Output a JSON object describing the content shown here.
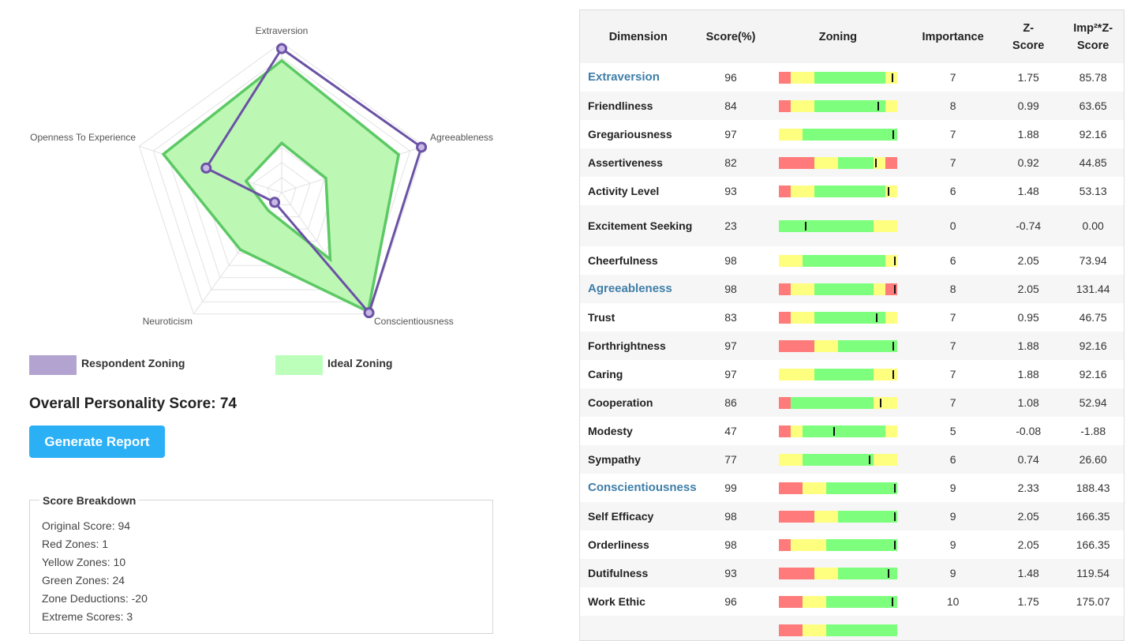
{
  "radar": {
    "axes": [
      "Extraversion",
      "Agreeableness",
      "Conscientiousness",
      "Neuroticism",
      "Openness To Experience"
    ],
    "max": 100,
    "respondent": [
      96,
      98,
      99,
      8,
      53
    ],
    "ideal_outer": [
      88,
      82,
      98,
      47,
      83
    ],
    "ideal_inner": [
      33,
      31,
      55,
      15,
      25
    ],
    "respondent_color": "#6b52a5",
    "ideal_color": "#5cc965",
    "ideal_fill": "#bdf7b4"
  },
  "legend": {
    "respondent": {
      "label": "Respondent Zoning",
      "color": "#b3a3d1"
    },
    "ideal": {
      "label": "Ideal Zoning",
      "color": "#bbffbb"
    }
  },
  "overall_label": "Overall Personality Score: 74",
  "generate_button": "Generate Report",
  "breakdown": {
    "title": "Score Breakdown",
    "lines": [
      "Original Score: 94",
      "Red Zones: 1",
      "Yellow Zones: 10",
      "Green Zones: 24",
      "Zone Deductions: -20",
      "Extreme Scores: 3"
    ]
  },
  "zone_colors": {
    "r": "#ff7b7b",
    "y": "#ffff7f",
    "g": "#7dff7d"
  },
  "table": {
    "headers": [
      "Dimension",
      "Score(%)",
      "Zoning",
      "Importance",
      "Z-Score",
      "Imp²*Z-Score"
    ],
    "rows": [
      {
        "dim": "Extraversion",
        "main": true,
        "score": "96",
        "imp": "7",
        "z": "1.75",
        "iz": "85.78",
        "zones": [
          [
            "r",
            0,
            10
          ],
          [
            "y",
            10,
            30
          ],
          [
            "g",
            30,
            90
          ],
          [
            "y",
            90,
            100
          ]
        ],
        "marker": 96
      },
      {
        "dim": "Friendliness",
        "score": "84",
        "imp": "8",
        "z": "0.99",
        "iz": "63.65",
        "zones": [
          [
            "r",
            0,
            10
          ],
          [
            "y",
            10,
            30
          ],
          [
            "g",
            30,
            90
          ],
          [
            "y",
            90,
            100
          ]
        ],
        "marker": 84
      },
      {
        "dim": "Gregariousness",
        "score": "97",
        "imp": "7",
        "z": "1.88",
        "iz": "92.16",
        "zones": [
          [
            "y",
            0,
            20
          ],
          [
            "g",
            20,
            100
          ]
        ],
        "marker": 97
      },
      {
        "dim": "Assertiveness",
        "score": "82",
        "imp": "7",
        "z": "0.92",
        "iz": "44.85",
        "zones": [
          [
            "r",
            0,
            30
          ],
          [
            "y",
            30,
            50
          ],
          [
            "g",
            50,
            80
          ],
          [
            "y",
            80,
            90
          ],
          [
            "r",
            90,
            100
          ]
        ],
        "marker": 82
      },
      {
        "dim": "Activity Level",
        "score": "93",
        "imp": "6",
        "z": "1.48",
        "iz": "53.13",
        "zones": [
          [
            "r",
            0,
            10
          ],
          [
            "y",
            10,
            30
          ],
          [
            "g",
            30,
            90
          ],
          [
            "y",
            90,
            100
          ]
        ],
        "marker": 93
      },
      {
        "dim": "Excitement Seeking",
        "score": "23",
        "imp": "0",
        "z": "-0.74",
        "iz": "0.00",
        "tall": true,
        "zones": [
          [
            "g",
            0,
            80
          ],
          [
            "y",
            80,
            100
          ]
        ],
        "marker": 23
      },
      {
        "dim": "Cheerfulness",
        "score": "98",
        "imp": "6",
        "z": "2.05",
        "iz": "73.94",
        "zones": [
          [
            "y",
            0,
            20
          ],
          [
            "g",
            20,
            90
          ],
          [
            "y",
            90,
            100
          ]
        ],
        "marker": 98
      },
      {
        "dim": "Agreeableness",
        "main": true,
        "score": "98",
        "imp": "8",
        "z": "2.05",
        "iz": "131.44",
        "zones": [
          [
            "r",
            0,
            10
          ],
          [
            "y",
            10,
            30
          ],
          [
            "g",
            30,
            80
          ],
          [
            "y",
            80,
            90
          ],
          [
            "r",
            90,
            100
          ]
        ],
        "marker": 98
      },
      {
        "dim": "Trust",
        "score": "83",
        "imp": "7",
        "z": "0.95",
        "iz": "46.75",
        "zones": [
          [
            "r",
            0,
            10
          ],
          [
            "y",
            10,
            30
          ],
          [
            "g",
            30,
            90
          ],
          [
            "y",
            90,
            100
          ]
        ],
        "marker": 83
      },
      {
        "dim": "Forthrightness",
        "score": "97",
        "imp": "7",
        "z": "1.88",
        "iz": "92.16",
        "zones": [
          [
            "r",
            0,
            30
          ],
          [
            "y",
            30,
            50
          ],
          [
            "g",
            50,
            100
          ]
        ],
        "marker": 97
      },
      {
        "dim": "Caring",
        "score": "97",
        "imp": "7",
        "z": "1.88",
        "iz": "92.16",
        "zones": [
          [
            "y",
            0,
            30
          ],
          [
            "g",
            30,
            80
          ],
          [
            "y",
            80,
            100
          ]
        ],
        "marker": 97
      },
      {
        "dim": "Cooperation",
        "score": "86",
        "imp": "7",
        "z": "1.08",
        "iz": "52.94",
        "zones": [
          [
            "r",
            0,
            10
          ],
          [
            "g",
            10,
            80
          ],
          [
            "y",
            80,
            100
          ]
        ],
        "marker": 86
      },
      {
        "dim": "Modesty",
        "score": "47",
        "imp": "5",
        "z": "-0.08",
        "iz": "-1.88",
        "zones": [
          [
            "r",
            0,
            10
          ],
          [
            "y",
            10,
            20
          ],
          [
            "g",
            20,
            90
          ],
          [
            "y",
            90,
            100
          ]
        ],
        "marker": 47
      },
      {
        "dim": "Sympathy",
        "score": "77",
        "imp": "6",
        "z": "0.74",
        "iz": "26.60",
        "zones": [
          [
            "y",
            0,
            20
          ],
          [
            "g",
            20,
            80
          ],
          [
            "y",
            80,
            100
          ]
        ],
        "marker": 77
      },
      {
        "dim": "Conscientiousness",
        "main": true,
        "score": "99",
        "imp": "9",
        "z": "2.33",
        "iz": "188.43",
        "zones": [
          [
            "r",
            0,
            20
          ],
          [
            "y",
            20,
            40
          ],
          [
            "g",
            40,
            100
          ]
        ],
        "marker": 99
      },
      {
        "dim": "Self Efficacy",
        "score": "98",
        "imp": "9",
        "z": "2.05",
        "iz": "166.35",
        "zones": [
          [
            "r",
            0,
            30
          ],
          [
            "y",
            30,
            50
          ],
          [
            "g",
            50,
            100
          ]
        ],
        "marker": 98
      },
      {
        "dim": "Orderliness",
        "score": "98",
        "imp": "9",
        "z": "2.05",
        "iz": "166.35",
        "zones": [
          [
            "r",
            0,
            10
          ],
          [
            "y",
            10,
            40
          ],
          [
            "g",
            40,
            100
          ]
        ],
        "marker": 98
      },
      {
        "dim": "Dutifulness",
        "score": "93",
        "imp": "9",
        "z": "1.48",
        "iz": "119.54",
        "zones": [
          [
            "r",
            0,
            30
          ],
          [
            "y",
            30,
            50
          ],
          [
            "g",
            50,
            100
          ]
        ],
        "marker": 93
      },
      {
        "dim": "Work Ethic",
        "score": "96",
        "imp": "10",
        "z": "1.75",
        "iz": "175.07",
        "zones": [
          [
            "r",
            0,
            20
          ],
          [
            "y",
            20,
            40
          ],
          [
            "g",
            40,
            100
          ]
        ],
        "marker": 96
      },
      {
        "dim": "",
        "score": "",
        "imp": "",
        "z": "",
        "iz": "",
        "zones": [
          [
            "r",
            0,
            20
          ],
          [
            "y",
            20,
            40
          ],
          [
            "g",
            40,
            100
          ]
        ],
        "marker": null
      }
    ]
  }
}
